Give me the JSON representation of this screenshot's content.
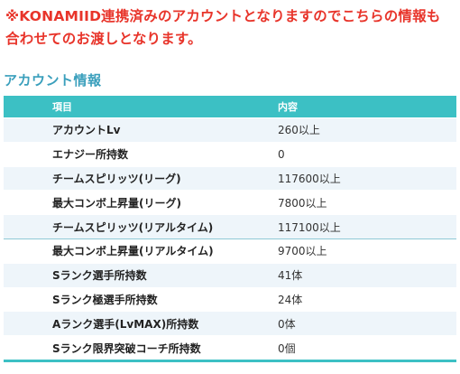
{
  "notice": {
    "line1": "※KONAMIID連携済みのアカウントとなりますのでこちらの情報も",
    "line2": "合わせてのお渡しとなります。"
  },
  "section_title": "アカウント情報",
  "table": {
    "headers": [
      "項目",
      "内容"
    ],
    "rows": [
      {
        "item": "アカウントLv",
        "value": "260以上"
      },
      {
        "item": "エナジー所持数",
        "value": "0"
      },
      {
        "item": "チームスピリッツ(リーグ)",
        "value": "117600以上"
      },
      {
        "item": "最大コンボ上昇量(リーグ)",
        "value": "7800以上"
      },
      {
        "item": "チームスピリッツ(リアルタイム)",
        "value": "117100以上"
      },
      {
        "item": "最大コンボ上昇量(リアルタイム)",
        "value": "9700以上"
      },
      {
        "item": "Sランク選手所持数",
        "value": "41体"
      },
      {
        "item": "Sランク極選手所持数",
        "value": "24体"
      },
      {
        "item": "Aランク選手(LvMAX)所持数",
        "value": "0体"
      },
      {
        "item": "Sランク限界突破コーチ所持数",
        "value": "0個"
      }
    ]
  }
}
